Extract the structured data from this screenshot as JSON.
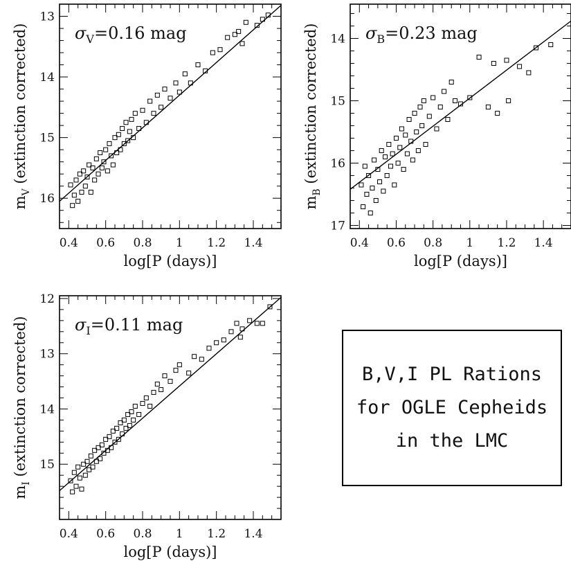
{
  "figure": {
    "note_lines": [
      "B,V,I PL Rations",
      "for OGLE Cepheids",
      "in the LMC"
    ]
  },
  "chart_data": [
    {
      "type": "scatter",
      "panel": "V",
      "annotation": {
        "symbol": "σ",
        "sub": "V",
        "text": "=0.16 mag"
      },
      "ylabel": {
        "main": "m",
        "sub": "V",
        "rest": " (extinction corrected)"
      },
      "xlabel": "log[P (days)]",
      "xlim": [
        0.35,
        1.55
      ],
      "ylim": [
        16.5,
        12.8
      ],
      "y_inverted": true,
      "xticks": [
        "0.4",
        "0.6",
        "0.8",
        "1",
        "1.2",
        "1.4"
      ],
      "yticks": [
        "13",
        "14",
        "15",
        "16"
      ],
      "fit_line": {
        "x": [
          0.35,
          1.55
        ],
        "y": [
          16.05,
          12.82
        ]
      },
      "scatter_sigma": 0.16,
      "points": [
        [
          0.41,
          15.78
        ],
        [
          0.42,
          16.12
        ],
        [
          0.43,
          15.95
        ],
        [
          0.44,
          15.7
        ],
        [
          0.45,
          16.05
        ],
        [
          0.46,
          15.6
        ],
        [
          0.47,
          15.9
        ],
        [
          0.48,
          15.55
        ],
        [
          0.49,
          15.8
        ],
        [
          0.5,
          15.65
        ],
        [
          0.51,
          15.45
        ],
        [
          0.52,
          15.9
        ],
        [
          0.53,
          15.5
        ],
        [
          0.54,
          15.7
        ],
        [
          0.55,
          15.35
        ],
        [
          0.56,
          15.6
        ],
        [
          0.57,
          15.25
        ],
        [
          0.58,
          15.5
        ],
        [
          0.59,
          15.4
        ],
        [
          0.6,
          15.2
        ],
        [
          0.61,
          15.55
        ],
        [
          0.62,
          15.1
        ],
        [
          0.63,
          15.3
        ],
        [
          0.64,
          15.45
        ],
        [
          0.65,
          15.0
        ],
        [
          0.66,
          15.25
        ],
        [
          0.67,
          14.95
        ],
        [
          0.68,
          15.2
        ],
        [
          0.69,
          14.85
        ],
        [
          0.7,
          15.1
        ],
        [
          0.71,
          14.75
        ],
        [
          0.72,
          15.05
        ],
        [
          0.73,
          14.9
        ],
        [
          0.74,
          14.7
        ],
        [
          0.75,
          15.0
        ],
        [
          0.76,
          14.6
        ],
        [
          0.78,
          14.85
        ],
        [
          0.8,
          14.55
        ],
        [
          0.82,
          14.75
        ],
        [
          0.84,
          14.4
        ],
        [
          0.86,
          14.6
        ],
        [
          0.88,
          14.3
        ],
        [
          0.9,
          14.5
        ],
        [
          0.92,
          14.2
        ],
        [
          0.95,
          14.35
        ],
        [
          0.98,
          14.1
        ],
        [
          1.0,
          14.25
        ],
        [
          1.03,
          13.95
        ],
        [
          1.06,
          14.1
        ],
        [
          1.1,
          13.8
        ],
        [
          1.14,
          13.9
        ],
        [
          1.18,
          13.6
        ],
        [
          1.22,
          13.55
        ],
        [
          1.26,
          13.35
        ],
        [
          1.3,
          13.3
        ],
        [
          1.32,
          13.25
        ],
        [
          1.34,
          13.45
        ],
        [
          1.36,
          13.1
        ],
        [
          1.42,
          13.15
        ],
        [
          1.45,
          13.05
        ],
        [
          1.48,
          12.98
        ]
      ]
    },
    {
      "type": "scatter",
      "panel": "B",
      "annotation": {
        "symbol": "σ",
        "sub": "B",
        "text": "=0.23 mag"
      },
      "ylabel": {
        "main": "m",
        "sub": "B",
        "rest": " (extinction corrected)"
      },
      "xlabel": "log[P (days)]",
      "xlim": [
        0.35,
        1.55
      ],
      "ylim": [
        17.05,
        13.45
      ],
      "y_inverted": true,
      "xticks": [
        "0.4",
        "0.6",
        "0.8",
        "1",
        "1.2",
        "1.4"
      ],
      "yticks": [
        "14",
        "15",
        "16",
        "17"
      ],
      "fit_line": {
        "x": [
          0.35,
          1.55
        ],
        "y": [
          16.42,
          13.72
        ]
      },
      "scatter_sigma": 0.23,
      "points": [
        [
          0.41,
          16.35
        ],
        [
          0.42,
          16.7
        ],
        [
          0.43,
          16.05
        ],
        [
          0.44,
          16.5
        ],
        [
          0.45,
          16.2
        ],
        [
          0.46,
          16.8
        ],
        [
          0.47,
          16.4
        ],
        [
          0.48,
          15.95
        ],
        [
          0.49,
          16.6
        ],
        [
          0.5,
          16.1
        ],
        [
          0.51,
          16.3
        ],
        [
          0.52,
          15.8
        ],
        [
          0.53,
          16.45
        ],
        [
          0.54,
          15.9
        ],
        [
          0.55,
          16.2
        ],
        [
          0.56,
          15.7
        ],
        [
          0.57,
          16.05
        ],
        [
          0.58,
          15.85
        ],
        [
          0.59,
          16.35
        ],
        [
          0.6,
          15.6
        ],
        [
          0.61,
          16.0
        ],
        [
          0.62,
          15.75
        ],
        [
          0.63,
          15.45
        ],
        [
          0.64,
          16.1
        ],
        [
          0.65,
          15.55
        ],
        [
          0.66,
          15.85
        ],
        [
          0.67,
          15.3
        ],
        [
          0.68,
          15.65
        ],
        [
          0.69,
          15.95
        ],
        [
          0.7,
          15.2
        ],
        [
          0.71,
          15.5
        ],
        [
          0.72,
          15.8
        ],
        [
          0.73,
          15.1
        ],
        [
          0.74,
          15.4
        ],
        [
          0.75,
          15.0
        ],
        [
          0.76,
          15.7
        ],
        [
          0.78,
          15.25
        ],
        [
          0.8,
          14.95
        ],
        [
          0.82,
          15.45
        ],
        [
          0.84,
          15.1
        ],
        [
          0.86,
          14.85
        ],
        [
          0.88,
          15.3
        ],
        [
          0.9,
          14.7
        ],
        [
          0.92,
          15.0
        ],
        [
          0.95,
          15.05
        ],
        [
          1.0,
          14.95
        ],
        [
          1.05,
          14.3
        ],
        [
          1.1,
          15.1
        ],
        [
          1.13,
          14.4
        ],
        [
          1.15,
          15.2
        ],
        [
          1.2,
          14.35
        ],
        [
          1.21,
          15.0
        ],
        [
          1.27,
          14.45
        ],
        [
          1.32,
          14.55
        ],
        [
          1.36,
          14.15
        ],
        [
          1.44,
          14.1
        ]
      ]
    },
    {
      "type": "scatter",
      "panel": "I",
      "annotation": {
        "symbol": "σ",
        "sub": "I",
        "text": "=0.11 mag"
      },
      "ylabel": {
        "main": "m",
        "sub": "I",
        "rest": " (extinction corrected)"
      },
      "xlabel": "log[P (days)]",
      "xlim": [
        0.35,
        1.55
      ],
      "ylim": [
        16.0,
        11.95
      ],
      "y_inverted": true,
      "xticks": [
        "0.4",
        "0.6",
        "0.8",
        "1",
        "1.2",
        "1.4"
      ],
      "yticks": [
        "12",
        "13",
        "14",
        "15"
      ],
      "fit_line": {
        "x": [
          0.35,
          1.55
        ],
        "y": [
          15.48,
          11.98
        ]
      },
      "scatter_sigma": 0.11,
      "points": [
        [
          0.41,
          15.3
        ],
        [
          0.42,
          15.5
        ],
        [
          0.43,
          15.15
        ],
        [
          0.44,
          15.4
        ],
        [
          0.45,
          15.05
        ],
        [
          0.46,
          15.25
        ],
        [
          0.47,
          15.45
        ],
        [
          0.48,
          15.0
        ],
        [
          0.49,
          15.2
        ],
        [
          0.5,
          14.95
        ],
        [
          0.51,
          15.1
        ],
        [
          0.52,
          14.85
        ],
        [
          0.53,
          15.05
        ],
        [
          0.54,
          14.75
        ],
        [
          0.55,
          14.95
        ],
        [
          0.56,
          14.7
        ],
        [
          0.57,
          14.9
        ],
        [
          0.58,
          14.65
        ],
        [
          0.59,
          14.8
        ],
        [
          0.6,
          14.55
        ],
        [
          0.61,
          14.75
        ],
        [
          0.62,
          14.5
        ],
        [
          0.63,
          14.7
        ],
        [
          0.64,
          14.4
        ],
        [
          0.65,
          14.6
        ],
        [
          0.66,
          14.35
        ],
        [
          0.67,
          14.55
        ],
        [
          0.68,
          14.25
        ],
        [
          0.69,
          14.45
        ],
        [
          0.7,
          14.2
        ],
        [
          0.71,
          14.35
        ],
        [
          0.72,
          14.1
        ],
        [
          0.73,
          14.3
        ],
        [
          0.74,
          14.05
        ],
        [
          0.75,
          14.2
        ],
        [
          0.76,
          13.95
        ],
        [
          0.78,
          14.1
        ],
        [
          0.8,
          13.9
        ],
        [
          0.82,
          13.8
        ],
        [
          0.84,
          13.95
        ],
        [
          0.86,
          13.7
        ],
        [
          0.88,
          13.55
        ],
        [
          0.9,
          13.65
        ],
        [
          0.92,
          13.4
        ],
        [
          0.95,
          13.5
        ],
        [
          0.98,
          13.3
        ],
        [
          1.0,
          13.2
        ],
        [
          1.05,
          13.35
        ],
        [
          1.08,
          13.05
        ],
        [
          1.12,
          13.1
        ],
        [
          1.16,
          12.9
        ],
        [
          1.2,
          12.8
        ],
        [
          1.24,
          12.75
        ],
        [
          1.28,
          12.6
        ],
        [
          1.31,
          12.45
        ],
        [
          1.33,
          12.7
        ],
        [
          1.34,
          12.55
        ],
        [
          1.38,
          12.4
        ],
        [
          1.42,
          12.45
        ],
        [
          1.45,
          12.45
        ],
        [
          1.49,
          12.15
        ]
      ]
    }
  ]
}
